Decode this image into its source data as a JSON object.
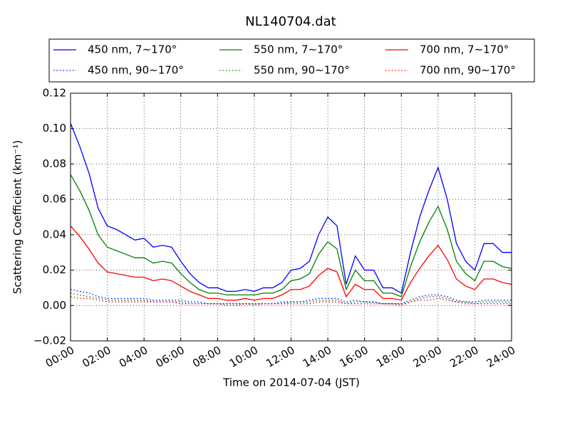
{
  "chart_data": {
    "type": "line",
    "title": "NL140704.dat",
    "x_label": "Time on 2014-07-04 (JST)",
    "y_label": "Scattering Coefficient (km⁻¹)",
    "x": [
      0,
      0.5,
      1,
      1.5,
      2,
      2.5,
      3,
      3.5,
      4,
      4.5,
      5,
      5.5,
      6,
      6.5,
      7,
      7.5,
      8,
      8.5,
      9,
      9.5,
      10,
      10.5,
      11,
      11.5,
      12,
      12.5,
      13,
      13.5,
      14,
      14.5,
      15,
      15.5,
      16,
      16.5,
      17,
      17.5,
      18,
      18.5,
      19,
      19.5,
      20,
      20.5,
      21,
      21.5,
      22,
      22.5,
      23,
      23.5,
      24
    ],
    "xlim": [
      0,
      24
    ],
    "xticks": [
      {
        "value": 0,
        "label": "00:00"
      },
      {
        "value": 2,
        "label": "02:00"
      },
      {
        "value": 4,
        "label": "04:00"
      },
      {
        "value": 6,
        "label": "06:00"
      },
      {
        "value": 8,
        "label": "08:00"
      },
      {
        "value": 10,
        "label": "10:00"
      },
      {
        "value": 12,
        "label": "12:00"
      },
      {
        "value": 14,
        "label": "14:00"
      },
      {
        "value": 16,
        "label": "16:00"
      },
      {
        "value": 18,
        "label": "18:00"
      },
      {
        "value": 20,
        "label": "20:00"
      },
      {
        "value": 22,
        "label": "22:00"
      },
      {
        "value": 24,
        "label": "24:00"
      }
    ],
    "ylim": [
      -0.02,
      0.12
    ],
    "yticks": [
      {
        "value": -0.02,
        "label": "−0.02"
      },
      {
        "value": 0,
        "label": "0.00"
      },
      {
        "value": 0.02,
        "label": "0.02"
      },
      {
        "value": 0.04,
        "label": "0.04"
      },
      {
        "value": 0.06,
        "label": "0.06"
      },
      {
        "value": 0.08,
        "label": "0.08"
      },
      {
        "value": 0.1,
        "label": "0.10"
      },
      {
        "value": 0.12,
        "label": "0.12"
      }
    ],
    "grid": true,
    "legend": "top",
    "series": [
      {
        "name": "450 nm, 7∼170°",
        "color": "#0000ff",
        "dash": "solid",
        "values": [
          0.103,
          0.09,
          0.075,
          0.055,
          0.045,
          0.043,
          0.04,
          0.037,
          0.038,
          0.033,
          0.034,
          0.033,
          0.025,
          0.018,
          0.013,
          0.01,
          0.01,
          0.008,
          0.008,
          0.009,
          0.008,
          0.01,
          0.01,
          0.013,
          0.02,
          0.021,
          0.025,
          0.04,
          0.05,
          0.045,
          0.012,
          0.028,
          0.02,
          0.02,
          0.01,
          0.01,
          0.007,
          0.03,
          0.05,
          0.065,
          0.078,
          0.06,
          0.035,
          0.025,
          0.02,
          0.035,
          0.035,
          0.03,
          0.03
        ]
      },
      {
        "name": "450 nm, 90∼170°",
        "color": "#0000ff",
        "dash": "dotted",
        "values": [
          0.009,
          0.008,
          0.007,
          0.005,
          0.004,
          0.004,
          0.004,
          0.004,
          0.004,
          0.003,
          0.003,
          0.003,
          0.003,
          0.002,
          0.002,
          0.001,
          0.001,
          0.001,
          0.001,
          0.001,
          0.001,
          0.001,
          0.001,
          0.002,
          0.002,
          0.002,
          0.003,
          0.004,
          0.004,
          0.004,
          0.002,
          0.003,
          0.002,
          0.002,
          0.001,
          0.001,
          0.001,
          0.003,
          0.005,
          0.006,
          0.006,
          0.005,
          0.003,
          0.002,
          0.002,
          0.003,
          0.003,
          0.003,
          0.003
        ]
      },
      {
        "name": "550 nm, 7∼170°",
        "color": "#008000",
        "dash": "solid",
        "values": [
          0.074,
          0.065,
          0.054,
          0.04,
          0.033,
          0.031,
          0.029,
          0.027,
          0.027,
          0.024,
          0.025,
          0.024,
          0.018,
          0.013,
          0.009,
          0.007,
          0.007,
          0.006,
          0.006,
          0.006,
          0.006,
          0.007,
          0.007,
          0.009,
          0.014,
          0.015,
          0.018,
          0.029,
          0.036,
          0.032,
          0.009,
          0.02,
          0.014,
          0.014,
          0.007,
          0.007,
          0.005,
          0.022,
          0.036,
          0.047,
          0.056,
          0.043,
          0.025,
          0.018,
          0.014,
          0.025,
          0.025,
          0.022,
          0.021
        ]
      },
      {
        "name": "550 nm, 90∼170°",
        "color": "#008000",
        "dash": "dotted",
        "values": [
          0.007,
          0.006,
          0.005,
          0.004,
          0.003,
          0.003,
          0.003,
          0.003,
          0.003,
          0.002,
          0.002,
          0.002,
          0.002,
          0.001,
          0.001,
          0.001,
          0.001,
          0.001,
          0.001,
          0.001,
          0.001,
          0.001,
          0.001,
          0.001,
          0.002,
          0.002,
          0.002,
          0.003,
          0.003,
          0.003,
          0.001,
          0.002,
          0.002,
          0.002,
          0.001,
          0.001,
          0.001,
          0.002,
          0.004,
          0.005,
          0.005,
          0.004,
          0.002,
          0.002,
          0.001,
          0.002,
          0.002,
          0.002,
          0.002
        ]
      },
      {
        "name": "700 nm, 7∼170°",
        "color": "#ff0000",
        "dash": "solid",
        "values": [
          0.045,
          0.039,
          0.032,
          0.024,
          0.019,
          0.018,
          0.017,
          0.016,
          0.016,
          0.014,
          0.015,
          0.014,
          0.011,
          0.008,
          0.006,
          0.004,
          0.004,
          0.003,
          0.003,
          0.004,
          0.003,
          0.004,
          0.004,
          0.006,
          0.009,
          0.009,
          0.011,
          0.017,
          0.021,
          0.019,
          0.005,
          0.012,
          0.009,
          0.009,
          0.004,
          0.004,
          0.003,
          0.013,
          0.021,
          0.028,
          0.034,
          0.026,
          0.015,
          0.011,
          0.009,
          0.015,
          0.015,
          0.013,
          0.012
        ]
      },
      {
        "name": "700 nm, 90∼170°",
        "color": "#ff0000",
        "dash": "dotted",
        "values": [
          0.005,
          0.004,
          0.004,
          0.003,
          0.002,
          0.002,
          0.002,
          0.002,
          0.002,
          0.002,
          0.002,
          0.002,
          0.001,
          0.001,
          0.001,
          0.001,
          0.001,
          0,
          0,
          0.001,
          0,
          0.001,
          0.001,
          0.001,
          0.001,
          0.001,
          0.001,
          0.002,
          0.002,
          0.002,
          0.001,
          0.001,
          0.001,
          0.001,
          0.001,
          0.001,
          0,
          0.002,
          0.003,
          0.003,
          0.004,
          0.003,
          0.002,
          0.001,
          0.001,
          0.001,
          0.001,
          0.001,
          0.001
        ]
      }
    ]
  }
}
